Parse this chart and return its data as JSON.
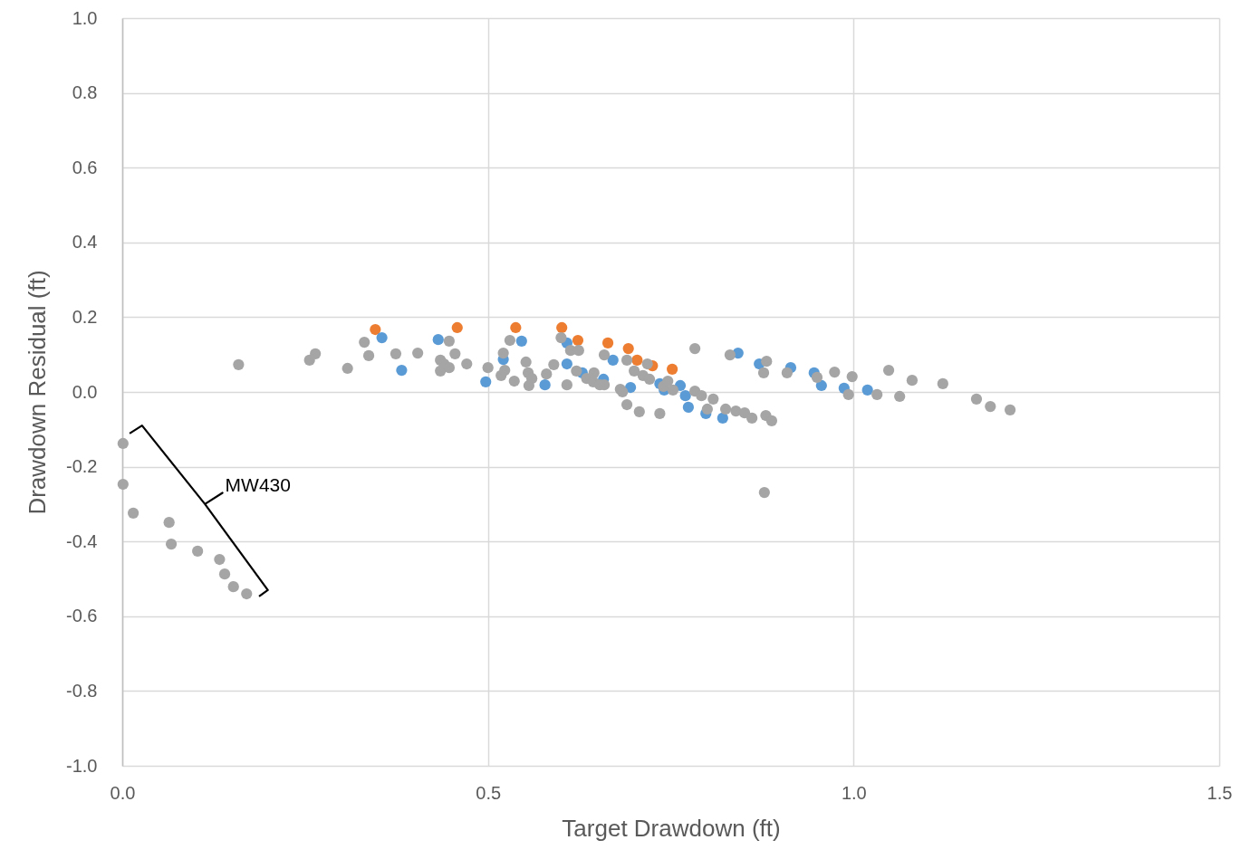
{
  "chart_data": {
    "type": "scatter",
    "xlabel": "Target Drawdown (ft)",
    "ylabel": "Drawdown Residual (ft)",
    "xlim": [
      0,
      1.5
    ],
    "xticks": [
      {
        "value": 0,
        "label": "0.0"
      },
      0.5,
      {
        "value": 1,
        "label": "1.0"
      },
      1.5
    ],
    "ylim": [
      -1,
      1
    ],
    "yticks": [
      {
        "value": -1,
        "label": "-1.0"
      },
      -0.8,
      -0.6,
      -0.4,
      -0.2,
      {
        "value": 0,
        "label": "0.0"
      },
      0.2,
      0.4,
      0.6,
      0.8,
      {
        "value": 1,
        "label": "1.0"
      }
    ],
    "grid": true,
    "marker": "circle",
    "annotations": [
      "MW430"
    ],
    "series": [
      {
        "color": "#ed7d31",
        "x": [
          0.346,
          0.458,
          0.538,
          0.601,
          0.623,
          0.664,
          0.692,
          0.704,
          0.725,
          0.752
        ],
        "values": [
          0.167,
          0.172,
          0.172,
          0.172,
          0.138,
          0.131,
          0.116,
          0.085,
          0.07,
          0.061
        ]
      },
      {
        "color": "#5b9bd5",
        "x": [
          0.355,
          0.382,
          0.432,
          0.497,
          0.521,
          0.546,
          0.578,
          0.608,
          0.608,
          0.629,
          0.658,
          0.671,
          0.695,
          0.735,
          0.741,
          0.763,
          0.77,
          0.774,
          0.798,
          0.821,
          0.842,
          0.871,
          0.914,
          0.946,
          0.956,
          0.987,
          1.019
        ],
        "values": [
          0.145,
          0.058,
          0.14,
          0.027,
          0.087,
          0.136,
          0.019,
          0.131,
          0.075,
          0.051,
          0.034,
          0.085,
          0.012,
          0.022,
          0.005,
          0.017,
          -0.01,
          -0.041,
          -0.058,
          -0.07,
          0.104,
          0.075,
          0.065,
          0.051,
          0.017,
          0.01,
          0.005
        ]
      },
      {
        "color": "#a5a5a5",
        "x": [
          0.159,
          0.264,
          0.256,
          0.308,
          0.331,
          0.337,
          0.374,
          0.404,
          0.435,
          0.435,
          0.44,
          0.447,
          0.447,
          0.455,
          0.471,
          0.5,
          0.521,
          0.518,
          0.523,
          0.53,
          0.536,
          0.552,
          0.555,
          0.56,
          0.556,
          0.58,
          0.59,
          0.6,
          0.608,
          0.613,
          0.624,
          0.621,
          0.635,
          0.645,
          0.644,
          0.653,
          0.659,
          0.659,
          0.681,
          0.684,
          0.69,
          0.69,
          0.7,
          0.707,
          0.712,
          0.718,
          0.721,
          0.735,
          0.74,
          0.746,
          0.753,
          0.783,
          0.783,
          0.792,
          0.8,
          0.808,
          0.825,
          0.831,
          0.839,
          0.851,
          0.861,
          0.877,
          0.881,
          0.88,
          0.888,
          0.878,
          0.909,
          0.95,
          0.974,
          0.998,
          0.993,
          1.032,
          1.048,
          1.063,
          1.08,
          1.122,
          1.168,
          1.187,
          1.214,
          0.001,
          0.001,
          0.015,
          0.064,
          0.067,
          0.103,
          0.133,
          0.14,
          0.152,
          0.17
        ],
        "values": [
          0.073,
          0.102,
          0.085,
          0.063,
          0.133,
          0.097,
          0.102,
          0.104,
          0.085,
          0.056,
          0.075,
          0.065,
          0.136,
          0.102,
          0.075,
          0.065,
          0.104,
          0.044,
          0.058,
          0.138,
          0.029,
          0.08,
          0.051,
          0.036,
          0.017,
          0.048,
          0.073,
          0.145,
          0.019,
          0.111,
          0.111,
          0.056,
          0.036,
          0.051,
          0.027,
          0.019,
          0.019,
          0.099,
          0.007,
          0,
          -0.034,
          0.085,
          0.056,
          -0.053,
          0.044,
          0.075,
          0.034,
          -0.058,
          0.015,
          0.029,
          0.005,
          0.116,
          0.002,
          -0.01,
          -0.046,
          -0.019,
          -0.046,
          0.099,
          -0.051,
          -0.056,
          -0.07,
          0.051,
          0.082,
          -0.063,
          -0.077,
          -0.269,
          0.051,
          0.039,
          0.053,
          0.041,
          -0.007,
          -0.007,
          0.058,
          -0.012,
          0.031,
          0.022,
          -0.019,
          -0.039,
          -0.048,
          -0.138,
          -0.247,
          -0.324,
          -0.349,
          -0.407,
          -0.426,
          -0.448,
          -0.487,
          -0.521,
          -0.54
        ]
      }
    ]
  }
}
